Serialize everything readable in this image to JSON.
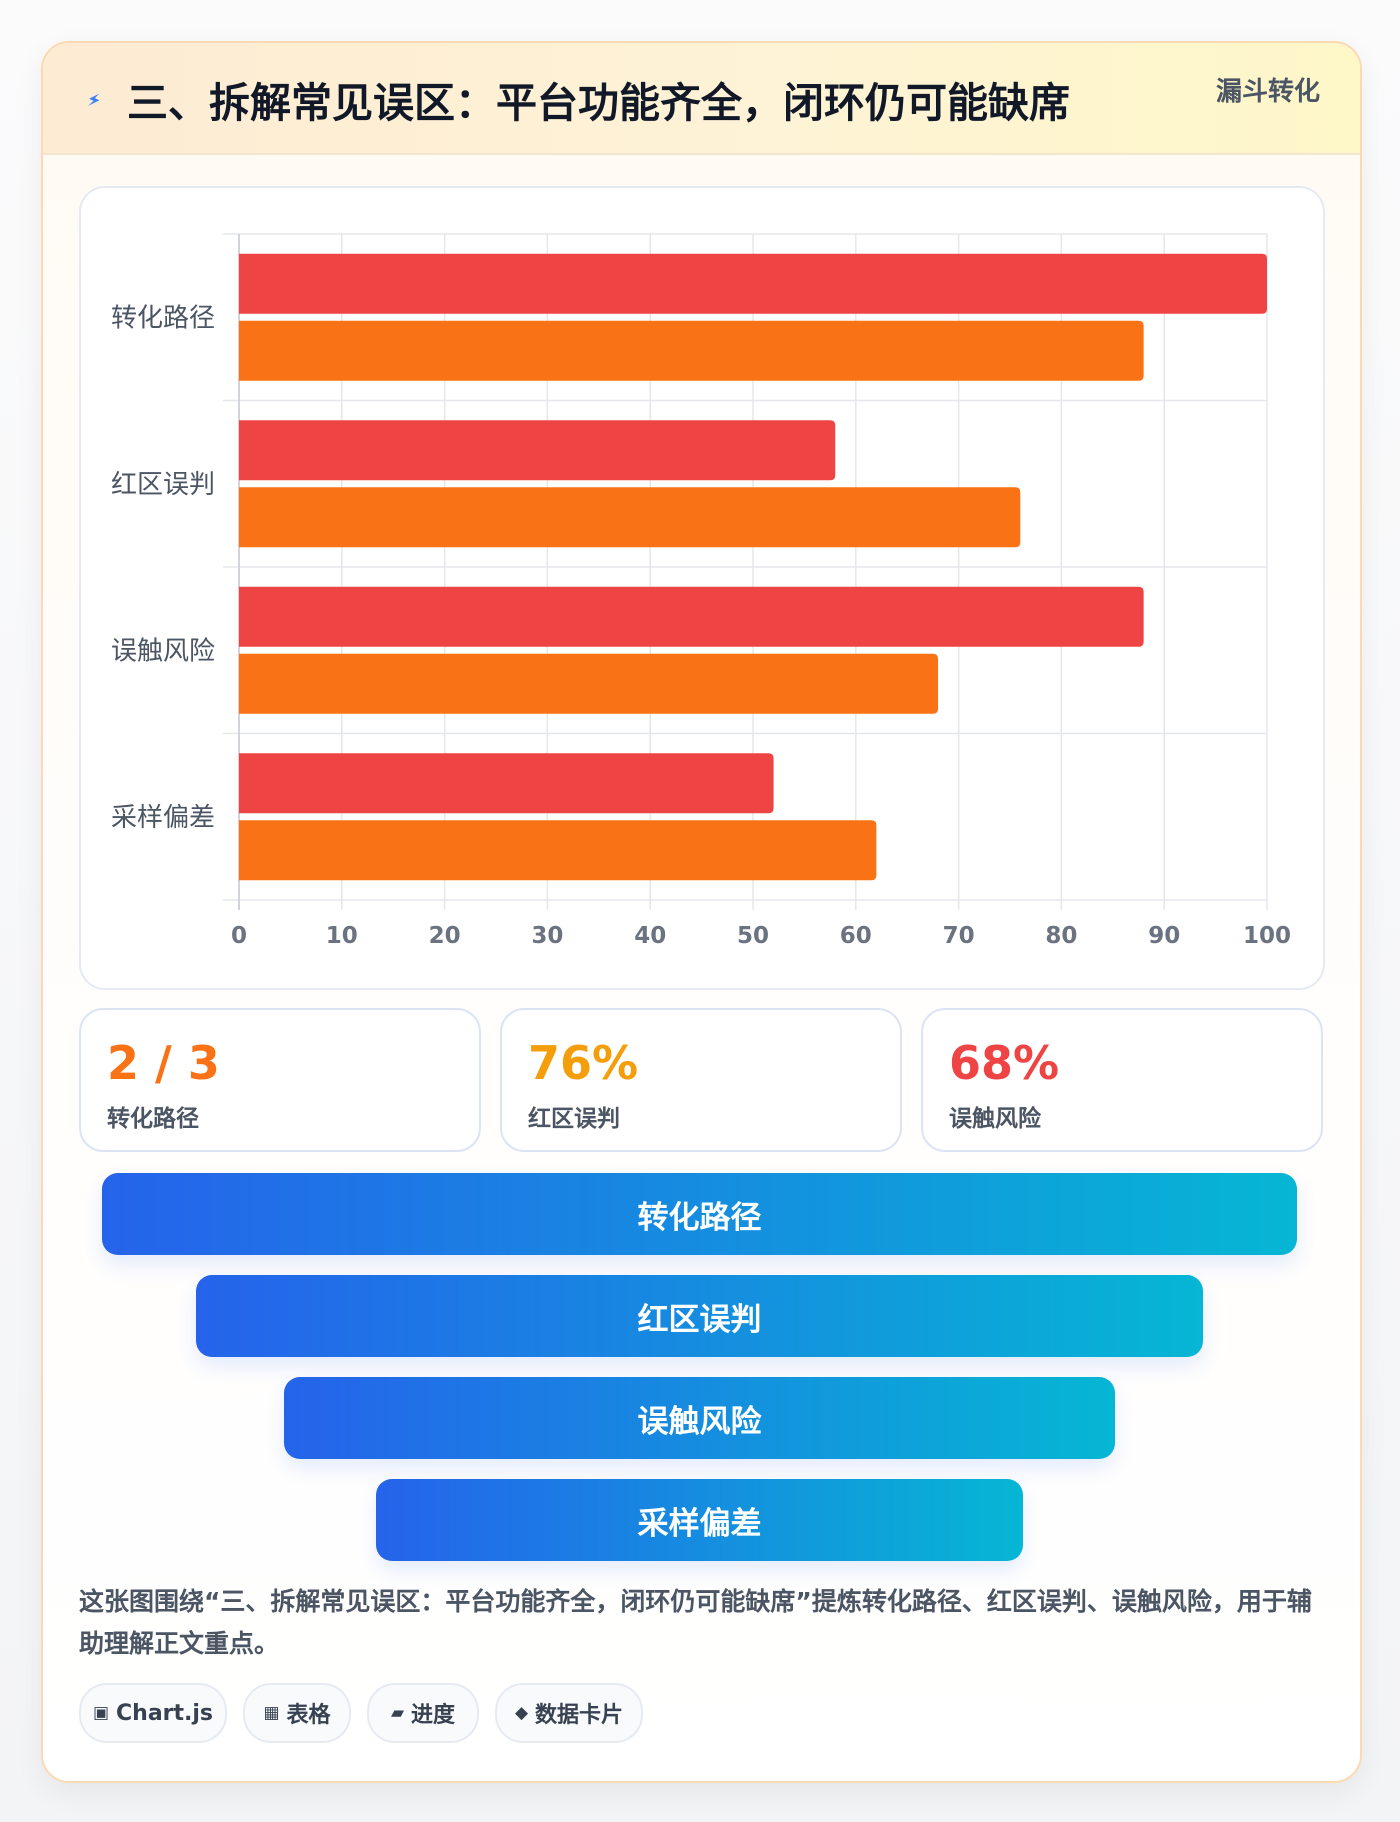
{
  "header": {
    "title": "三、拆解常见误区：平台功能齐全，闭环仍可能缺席",
    "tag": "漏斗转化",
    "icon": "lightning-icon"
  },
  "chart_data": {
    "type": "bar",
    "orientation": "horizontal",
    "categories": [
      "转化路径",
      "红区误判",
      "误触风险",
      "采样偏差"
    ],
    "series": [
      {
        "values": [
          100,
          58,
          88,
          52
        ],
        "color": "#ef4444"
      },
      {
        "values": [
          88,
          76,
          68,
          62
        ],
        "color": "#f97316"
      }
    ],
    "xlim": [
      0,
      100
    ],
    "xticks": [
      0,
      10,
      20,
      30,
      40,
      50,
      60,
      70,
      80,
      90,
      100
    ],
    "xlabel": "",
    "ylabel": "",
    "grid": true,
    "legend": "none"
  },
  "stats": [
    {
      "value": "2 / 3",
      "label": "转化路径",
      "color": "#f97316"
    },
    {
      "value": "76%",
      "label": "红区误判",
      "color": "#f59e0b"
    },
    {
      "value": "68%",
      "label": "误触风险",
      "color": "#ef4444"
    }
  ],
  "funnel": [
    "转化路径",
    "红区误判",
    "误触风险",
    "采样偏差"
  ],
  "caption": "这张图围绕“三、拆解常见误区：平台功能齐全，闭环仍可能缺席”提炼转化路径、红区误判、误触风险，用于辅助理解正文重点。",
  "chips": [
    {
      "icon": "▣",
      "icon_name": "chart-icon",
      "label": "Chart.js"
    },
    {
      "icon": "▦",
      "icon_name": "table-icon",
      "label": "表格"
    },
    {
      "icon": "▰",
      "icon_name": "progress-icon",
      "label": "进度"
    },
    {
      "icon": "◆",
      "icon_name": "diamond-icon",
      "label": "数据卡片"
    }
  ]
}
